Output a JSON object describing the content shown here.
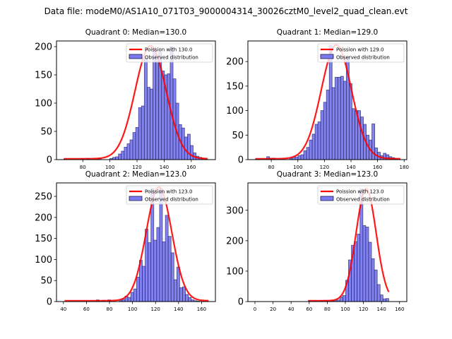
{
  "figure": {
    "suptitle": "Data file: modeM0/AS1A10_071T03_9000004314_30026cztM0_level2_quad_clean.evt"
  },
  "colors": {
    "bar_fill": "#7b7bf0",
    "bar_edge": "#1a1a55",
    "poisson_line": "#ff0000",
    "axis": "#000000"
  },
  "chart_data": [
    {
      "type": "bar",
      "title": "Quadrant 0: Median=130.0",
      "legend": [
        "Poission with 130.0",
        "Observed distribution"
      ],
      "legend_position": "top-right",
      "xlim": [
        60.6,
        177.8
      ],
      "ylim": [
        0,
        210
      ],
      "xticks": [
        80,
        100,
        120,
        140,
        160
      ],
      "yticks": [
        0,
        50,
        100,
        150,
        200
      ],
      "bin_start": 66,
      "bin_width": 2.12,
      "values": [
        1,
        0,
        0,
        0,
        0,
        0,
        2,
        0,
        2,
        0,
        0,
        0,
        2,
        0,
        0,
        0,
        2,
        4,
        5,
        10,
        15,
        22,
        28,
        35,
        48,
        57,
        92,
        95,
        180,
        128,
        125,
        198,
        175,
        190,
        157,
        150,
        152,
        200,
        143,
        100,
        62,
        56,
        40,
        45,
        25,
        12,
        6,
        4,
        2,
        1
      ],
      "poisson_mean": 130.0,
      "poisson_peak": 200
    },
    {
      "type": "bar",
      "title": "Quadrant 1: Median=129.0",
      "legend": [
        "Poission with 129.0",
        "Observed distribution"
      ],
      "legend_position": "top-right",
      "xlim": [
        62.4,
        182.0
      ],
      "ylim": [
        0,
        242
      ],
      "xticks": [
        80,
        100,
        120,
        140,
        160,
        180
      ],
      "yticks": [
        0,
        50,
        100,
        150,
        200
      ],
      "bin_start": 68,
      "bin_width": 2.14,
      "values": [
        1,
        0,
        0,
        0,
        6,
        3,
        3,
        0,
        0,
        0,
        0,
        0,
        2,
        6,
        5,
        8,
        10,
        18,
        25,
        40,
        52,
        72,
        77,
        100,
        117,
        142,
        233,
        147,
        168,
        168,
        170,
        160,
        210,
        155,
        104,
        100,
        100,
        87,
        72,
        50,
        40,
        73,
        24,
        15,
        8,
        13,
        10,
        6,
        4,
        2,
        1
      ],
      "poisson_mean": 129.0,
      "poisson_peak": 232
    },
    {
      "type": "bar",
      "title": "Quadrant 2: Median=123.0",
      "legend": [
        "Poission with 123.0",
        "Observed distribution"
      ],
      "legend_position": "top-right",
      "xlim": [
        34.0,
        172.0
      ],
      "ylim": [
        0,
        282
      ],
      "xticks": [
        40,
        60,
        80,
        100,
        120,
        140,
        160
      ],
      "yticks": [
        0,
        50,
        100,
        150,
        200,
        250
      ],
      "bin_start": 41,
      "bin_width": 2.5,
      "values": [
        0,
        0,
        0,
        0,
        0,
        0,
        0,
        0,
        0,
        0,
        0,
        4,
        0,
        3,
        0,
        4,
        0,
        0,
        0,
        3,
        5,
        13,
        10,
        22,
        30,
        58,
        98,
        84,
        172,
        140,
        268,
        146,
        176,
        268,
        142,
        205,
        155,
        116,
        52,
        82,
        33,
        35,
        17,
        10,
        4,
        2,
        1,
        0,
        0,
        1
      ],
      "poisson_mean": 123.0,
      "poisson_peak": 270
    },
    {
      "type": "bar",
      "title": "Quadrant 3: Median=123.0",
      "legend": [
        "Poission with 123.0",
        "Observed distribution"
      ],
      "legend_position": "top-right",
      "xlim": [
        -7.8,
        168.0
      ],
      "ylim": [
        0,
        390
      ],
      "xticks": [
        0,
        20,
        40,
        60,
        80,
        100,
        120,
        140,
        160
      ],
      "yticks": [
        0,
        100,
        200,
        300
      ],
      "bin_start": 59,
      "bin_width": 3.18,
      "values": [
        3,
        0,
        3,
        0,
        3,
        3,
        3,
        0,
        2,
        3,
        5,
        15,
        20,
        70,
        137,
        185,
        197,
        222,
        370,
        250,
        245,
        195,
        141,
        104,
        56,
        22,
        9,
        10
      ],
      "poisson_mean": 123.0,
      "poisson_peak": 368
    }
  ]
}
